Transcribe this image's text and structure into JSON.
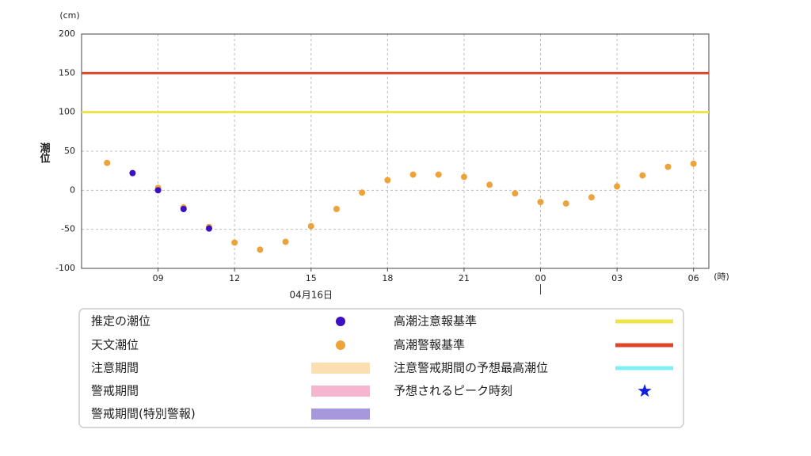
{
  "chart_data": {
    "type": "scatter",
    "y_label": "潮位",
    "y_unit": "(cm)",
    "x_unit": "(時)",
    "date_annotation": {
      "label": "04月16日",
      "x": 15
    },
    "day_separator": 24,
    "x": [
      7,
      8,
      9,
      10,
      11,
      12,
      13,
      14,
      15,
      16,
      17,
      18,
      19,
      20,
      21,
      22,
      23,
      24,
      25,
      26,
      27,
      28,
      29,
      30
    ],
    "series": [
      {
        "name": "推定の潮位",
        "color": "#3a10c0",
        "values": [
          null,
          22,
          0,
          -24,
          -49,
          null,
          null,
          null,
          null,
          null,
          null,
          null,
          null,
          null,
          null,
          null,
          null,
          null,
          null,
          null,
          null,
          null,
          null,
          null
        ]
      },
      {
        "name": "天文潮位",
        "color": "#eea23a",
        "values": [
          35,
          null,
          3,
          -22,
          -47,
          -67,
          -76,
          -66,
          -46,
          -24,
          -3,
          13,
          20,
          20,
          17,
          7,
          -4,
          -15,
          -17,
          -9,
          5,
          19,
          30,
          34
        ]
      }
    ],
    "reference_lines": [
      {
        "name": "高潮注意報基準",
        "value": 100,
        "color": "#ece44a"
      },
      {
        "name": "高潮警報基準",
        "value": 150,
        "color": "#e0452a"
      }
    ],
    "periods": [
      {
        "name": "注意期間",
        "color": "#fbdfb3"
      },
      {
        "name": "警戒期間",
        "color": "#f5b5cf"
      },
      {
        "name": "警戒期間(特別警報)",
        "color": "#a797dd"
      }
    ],
    "markers": [
      {
        "name": "注意警戒期間の予想最高潮位",
        "color": "#7ef0f5",
        "symbol": "line"
      },
      {
        "name": "予想されるピーク時刻",
        "color": "#1020e0",
        "symbol": "star"
      }
    ],
    "xlim": [
      6,
      30.6
    ],
    "xticks": [
      {
        "value": 9,
        "label": "09"
      },
      12,
      15,
      18,
      21,
      {
        "value": 24,
        "label": "00"
      },
      {
        "value": 27,
        "label": "03"
      },
      {
        "value": 30,
        "label": "06"
      }
    ],
    "ylim": [
      -100,
      200
    ],
    "yticks": [
      -100,
      -50,
      0,
      50,
      100,
      150,
      200
    ],
    "grid": true
  }
}
